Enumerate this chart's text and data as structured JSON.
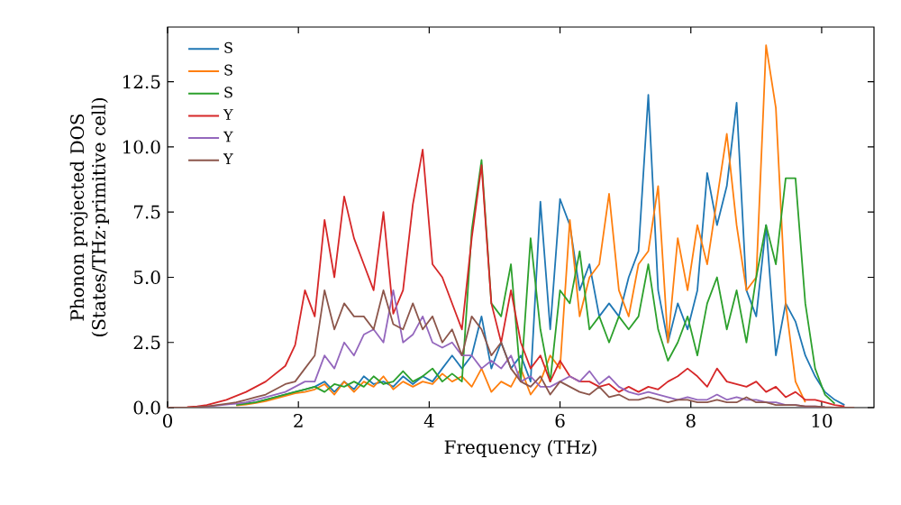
{
  "chart_data": {
    "type": "line",
    "xlabel": "Frequency (THz)",
    "ylabel": "Phonon projected DOS (States/THz·primitive cell)",
    "x": [
      0,
      0.15,
      0.3,
      0.45,
      0.6,
      0.75,
      0.9,
      1.05,
      1.2,
      1.35,
      1.5,
      1.65,
      1.8,
      1.95,
      2.1,
      2.25,
      2.4,
      2.55,
      2.7,
      2.85,
      3,
      3.15,
      3.3,
      3.45,
      3.6,
      3.75,
      3.9,
      4.05,
      4.2,
      4.35,
      4.5,
      4.65,
      4.8,
      4.95,
      5.1,
      5.25,
      5.4,
      5.55,
      5.7,
      5.85,
      6,
      6.15,
      6.3,
      6.45,
      6.6,
      6.75,
      6.9,
      7.05,
      7.2,
      7.35,
      7.5,
      7.65,
      7.8,
      7.95,
      8.1,
      8.25,
      8.4,
      8.55,
      8.7,
      8.85,
      9,
      9.15,
      9.3,
      9.45,
      9.6,
      9.75,
      9.9,
      10.05,
      10.2,
      10.35,
      10.5
    ],
    "series": [
      {
        "name": "S",
        "color": "#1f77b4",
        "values": [
          null,
          null,
          null,
          null,
          null,
          null,
          null,
          0.1,
          0.15,
          0.2,
          0.3,
          0.4,
          0.5,
          0.6,
          0.7,
          0.8,
          1.0,
          0.6,
          1.0,
          0.7,
          1.2,
          0.9,
          1.0,
          0.8,
          1.2,
          0.9,
          1.2,
          1.0,
          1.5,
          2.0,
          1.5,
          2.0,
          3.5,
          1.5,
          2.5,
          1.5,
          2.0,
          1.0,
          7.9,
          3.0,
          8.0,
          7.0,
          4.5,
          5.5,
          3.5,
          4.0,
          3.5,
          5.0,
          6.0,
          12.0,
          4.5,
          2.5,
          4.0,
          3.0,
          4.5,
          9.0,
          7.0,
          8.5,
          11.7,
          4.5,
          3.5,
          7.0,
          2.0,
          4.0,
          3.3,
          2.0,
          1.2,
          0.6,
          0.3,
          0.1,
          null
        ]
      },
      {
        "name": "S",
        "color": "#ff7f0e",
        "values": [
          null,
          null,
          null,
          null,
          null,
          null,
          null,
          0.08,
          0.12,
          0.18,
          0.25,
          0.35,
          0.45,
          0.55,
          0.6,
          0.7,
          0.9,
          0.5,
          1.0,
          0.6,
          1.0,
          0.8,
          1.2,
          0.7,
          1.0,
          0.8,
          1.0,
          0.9,
          1.3,
          1.0,
          1.2,
          0.8,
          1.5,
          0.6,
          1.0,
          0.8,
          1.5,
          0.5,
          1.0,
          2.0,
          1.5,
          7.2,
          3.5,
          5.0,
          5.5,
          8.2,
          4.5,
          3.5,
          5.5,
          6.0,
          8.5,
          2.5,
          6.5,
          4.5,
          7.0,
          5.5,
          8.0,
          10.5,
          7.0,
          4.5,
          5.0,
          13.9,
          11.5,
          4.0,
          1.0,
          0.2,
          null,
          null,
          null,
          null,
          null
        ]
      },
      {
        "name": "S",
        "color": "#2ca02c",
        "values": [
          null,
          null,
          null,
          null,
          null,
          null,
          null,
          0.1,
          0.15,
          0.2,
          0.3,
          0.4,
          0.5,
          0.6,
          0.7,
          0.8,
          0.6,
          0.9,
          0.8,
          1.0,
          0.8,
          1.2,
          0.9,
          1.0,
          1.4,
          1.0,
          1.2,
          1.5,
          1.0,
          1.3,
          1.0,
          6.8,
          9.5,
          4.0,
          3.5,
          5.5,
          1.0,
          6.5,
          3.0,
          1.0,
          4.5,
          4.0,
          6.0,
          3.0,
          3.5,
          2.5,
          3.5,
          3.0,
          3.5,
          5.5,
          3.0,
          1.8,
          2.5,
          3.5,
          2.0,
          4.0,
          5.0,
          3.0,
          4.5,
          2.5,
          5.0,
          7.0,
          5.5,
          8.8,
          8.8,
          4.0,
          1.5,
          0.5,
          0.15,
          null,
          null
        ]
      },
      {
        "name": "Y",
        "color": "#d62728",
        "values": [
          null,
          null,
          0.02,
          0.05,
          0.1,
          0.2,
          0.3,
          0.45,
          0.6,
          0.8,
          1.0,
          1.3,
          1.6,
          2.4,
          4.5,
          3.5,
          7.2,
          5.0,
          8.1,
          6.5,
          5.5,
          4.5,
          7.5,
          3.6,
          4.5,
          7.8,
          9.9,
          5.5,
          5.0,
          4.0,
          3.0,
          6.5,
          9.3,
          4.0,
          2.5,
          4.5,
          2.5,
          1.5,
          2.0,
          1.0,
          1.8,
          1.2,
          1.0,
          1.0,
          0.8,
          0.9,
          0.6,
          0.8,
          0.6,
          0.8,
          0.7,
          1.0,
          1.2,
          1.5,
          1.2,
          0.8,
          1.5,
          1.0,
          0.9,
          0.8,
          1.0,
          0.6,
          0.8,
          0.4,
          0.6,
          0.3,
          0.3,
          0.2,
          0.1,
          0.05,
          null
        ]
      },
      {
        "name": "Y",
        "color": "#9467bd",
        "values": [
          null,
          null,
          null,
          0.02,
          0.04,
          0.08,
          0.12,
          0.15,
          0.2,
          0.3,
          0.4,
          0.5,
          0.6,
          0.8,
          1.0,
          1.0,
          2.0,
          1.5,
          2.5,
          2.0,
          2.8,
          3.0,
          2.5,
          4.5,
          2.5,
          2.8,
          3.5,
          2.5,
          2.3,
          2.5,
          2.0,
          2.0,
          1.5,
          1.8,
          1.5,
          2.0,
          1.0,
          1.2,
          0.8,
          0.8,
          1.0,
          1.2,
          1.0,
          1.4,
          0.9,
          1.2,
          0.8,
          0.6,
          0.5,
          0.6,
          0.5,
          0.4,
          0.3,
          0.4,
          0.3,
          0.3,
          0.5,
          0.3,
          0.4,
          0.3,
          0.3,
          0.2,
          0.2,
          0.1,
          0.1,
          0.05,
          0.05,
          0.02,
          null,
          null,
          null
        ]
      },
      {
        "name": "Y",
        "color": "#8c564b",
        "values": [
          0,
          0,
          0,
          0.02,
          0.05,
          0.1,
          0.15,
          0.2,
          0.3,
          0.4,
          0.5,
          0.7,
          0.9,
          1.0,
          1.5,
          2.0,
          4.5,
          3.0,
          4.0,
          3.5,
          3.5,
          3.0,
          4.5,
          3.2,
          3.0,
          4.0,
          3.0,
          3.5,
          2.5,
          3.0,
          2.0,
          3.5,
          3.0,
          2.0,
          2.5,
          1.5,
          1.0,
          0.8,
          1.2,
          0.5,
          1.0,
          0.8,
          0.6,
          0.5,
          0.8,
          0.4,
          0.5,
          0.3,
          0.3,
          0.4,
          0.3,
          0.2,
          0.3,
          0.3,
          0.2,
          0.2,
          0.3,
          0.2,
          0.2,
          0.4,
          0.2,
          0.2,
          0.1,
          0.1,
          0.1,
          0.05,
          0.05,
          0.02,
          0,
          0,
          0
        ]
      }
    ],
    "xlim": [
      0,
      10.8
    ],
    "xticks": [
      0,
      2,
      4,
      6,
      8,
      10
    ],
    "ylim": [
      0,
      14.6
    ],
    "yticks": [
      {
        "value": 0,
        "label": "0.0"
      },
      2.5,
      {
        "value": 5,
        "label": "5.0"
      },
      7.5,
      {
        "value": 10,
        "label": "10.0"
      },
      12.5
    ],
    "grid": false,
    "legend": "top left",
    "marker": "none",
    "line_style": "solid"
  }
}
